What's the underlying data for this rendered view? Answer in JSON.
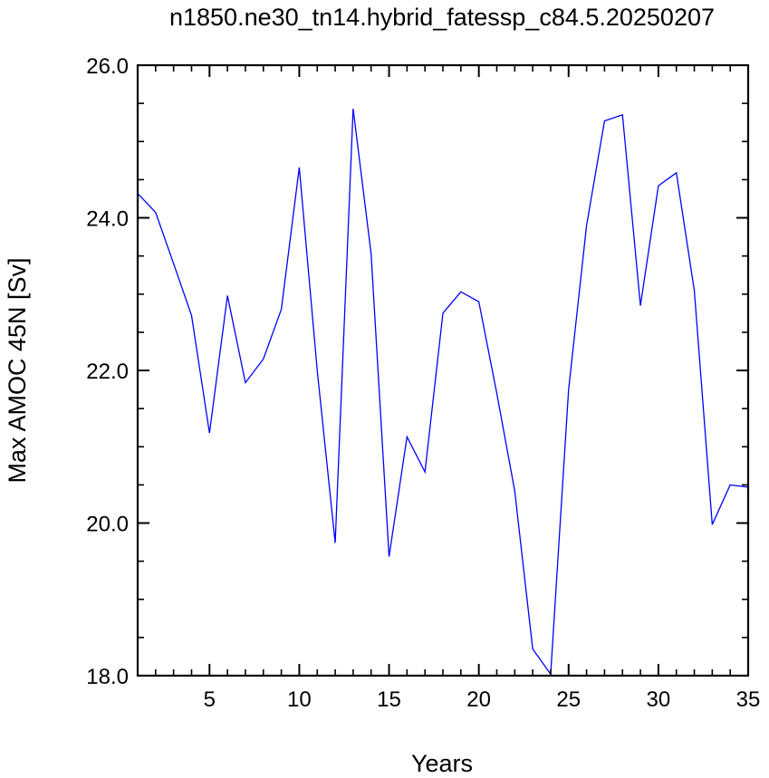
{
  "chart_data": {
    "type": "line",
    "title": "n1850.ne30_tn14.hybrid_fatessp_c84.5.20250207",
    "xlabel": "Years",
    "ylabel": "Max AMOC 45N [Sv]",
    "xlim": [
      1,
      35
    ],
    "ylim": [
      18.0,
      26.0
    ],
    "x_ticks": [
      5,
      10,
      15,
      20,
      25,
      30,
      35
    ],
    "x_tick_labels": [
      "5",
      "10",
      "15",
      "20",
      "25",
      "30",
      "35"
    ],
    "y_ticks": [
      18.0,
      20.0,
      22.0,
      24.0,
      26.0
    ],
    "y_tick_labels": [
      "18.0",
      "20.0",
      "22.0",
      "24.0",
      "26.0"
    ],
    "grid": false,
    "line_color": "#0000ff",
    "series": [
      {
        "x": [
          1,
          2,
          3,
          4,
          5,
          6,
          7,
          8,
          9,
          10,
          11,
          12,
          13,
          14,
          15,
          16,
          17,
          18,
          19,
          20,
          21,
          22,
          23,
          24,
          25,
          26,
          27,
          28,
          29,
          30,
          31,
          32,
          33,
          34,
          35
        ],
        "values": [
          24.32,
          24.07,
          23.4,
          22.72,
          21.18,
          22.98,
          21.84,
          22.15,
          22.8,
          24.66,
          22.0,
          19.74,
          25.43,
          23.53,
          19.56,
          21.13,
          20.67,
          22.75,
          23.03,
          22.9,
          21.7,
          20.42,
          18.35,
          18.02,
          21.75,
          23.9,
          25.27,
          25.35,
          22.85,
          24.42,
          24.59,
          23.05,
          19.98,
          20.5,
          20.47
        ]
      }
    ]
  }
}
